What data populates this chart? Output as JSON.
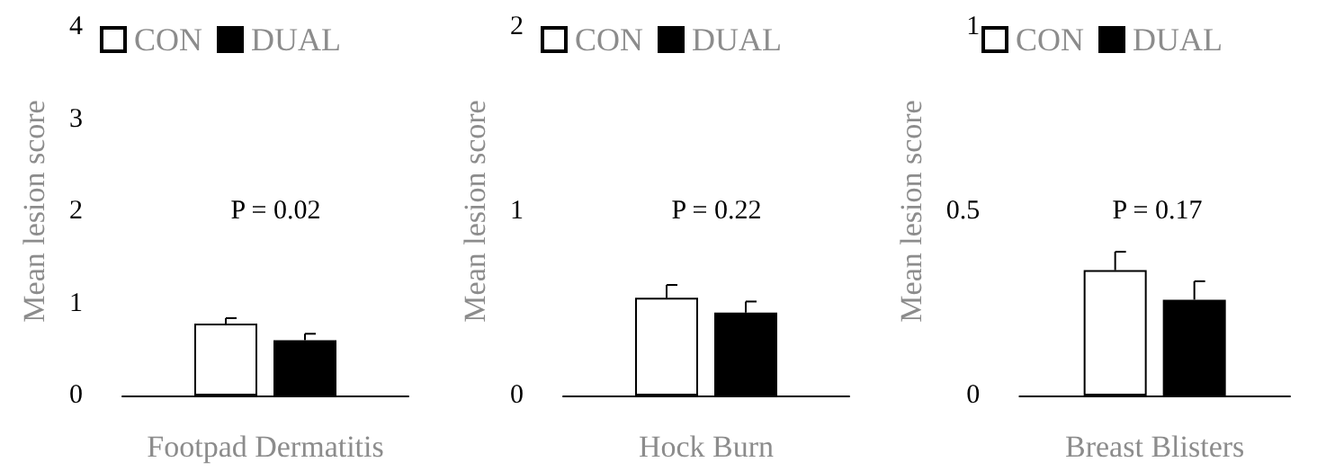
{
  "chart_data": [
    {
      "type": "bar",
      "xlabel": "Footpad Dermatitis",
      "ylabel": "Mean lesion score",
      "categories": [
        null
      ],
      "ylim": [
        0,
        4
      ],
      "yticks": [
        0,
        1,
        2,
        3,
        4
      ],
      "grid": false,
      "legend": "top",
      "annotations": [
        "P = 0.02"
      ],
      "series": [
        {
          "name": "CON",
          "color": "#ffffff",
          "values": [
            0.78
          ],
          "errors": [
            0.06
          ]
        },
        {
          "name": "DUAL",
          "color": "#000000",
          "values": [
            0.6
          ],
          "errors": [
            0.07
          ]
        }
      ]
    },
    {
      "type": "bar",
      "xlabel": "Hock Burn",
      "ylabel": "Mean lesion score",
      "categories": [
        null
      ],
      "ylim": [
        0,
        2
      ],
      "yticks": [
        0,
        1,
        2
      ],
      "grid": false,
      "legend": "top",
      "annotations": [
        "P = 0.22"
      ],
      "series": [
        {
          "name": "CON",
          "color": "#ffffff",
          "values": [
            0.53
          ],
          "errors": [
            0.07
          ]
        },
        {
          "name": "DUAL",
          "color": "#000000",
          "values": [
            0.45
          ],
          "errors": [
            0.06
          ]
        }
      ]
    },
    {
      "type": "bar",
      "xlabel": "Breast Blisters",
      "ylabel": "Mean lesion score",
      "categories": [
        null
      ],
      "ylim": [
        0,
        1
      ],
      "yticks": [
        0,
        0.5,
        1
      ],
      "grid": false,
      "legend": "top",
      "annotations": [
        "P = 0.17"
      ],
      "series": [
        {
          "name": "CON",
          "color": "#ffffff",
          "values": [
            0.34
          ],
          "errors": [
            0.05
          ]
        },
        {
          "name": "DUAL",
          "color": "#000000",
          "values": [
            0.26
          ],
          "errors": [
            0.05
          ]
        }
      ]
    }
  ]
}
